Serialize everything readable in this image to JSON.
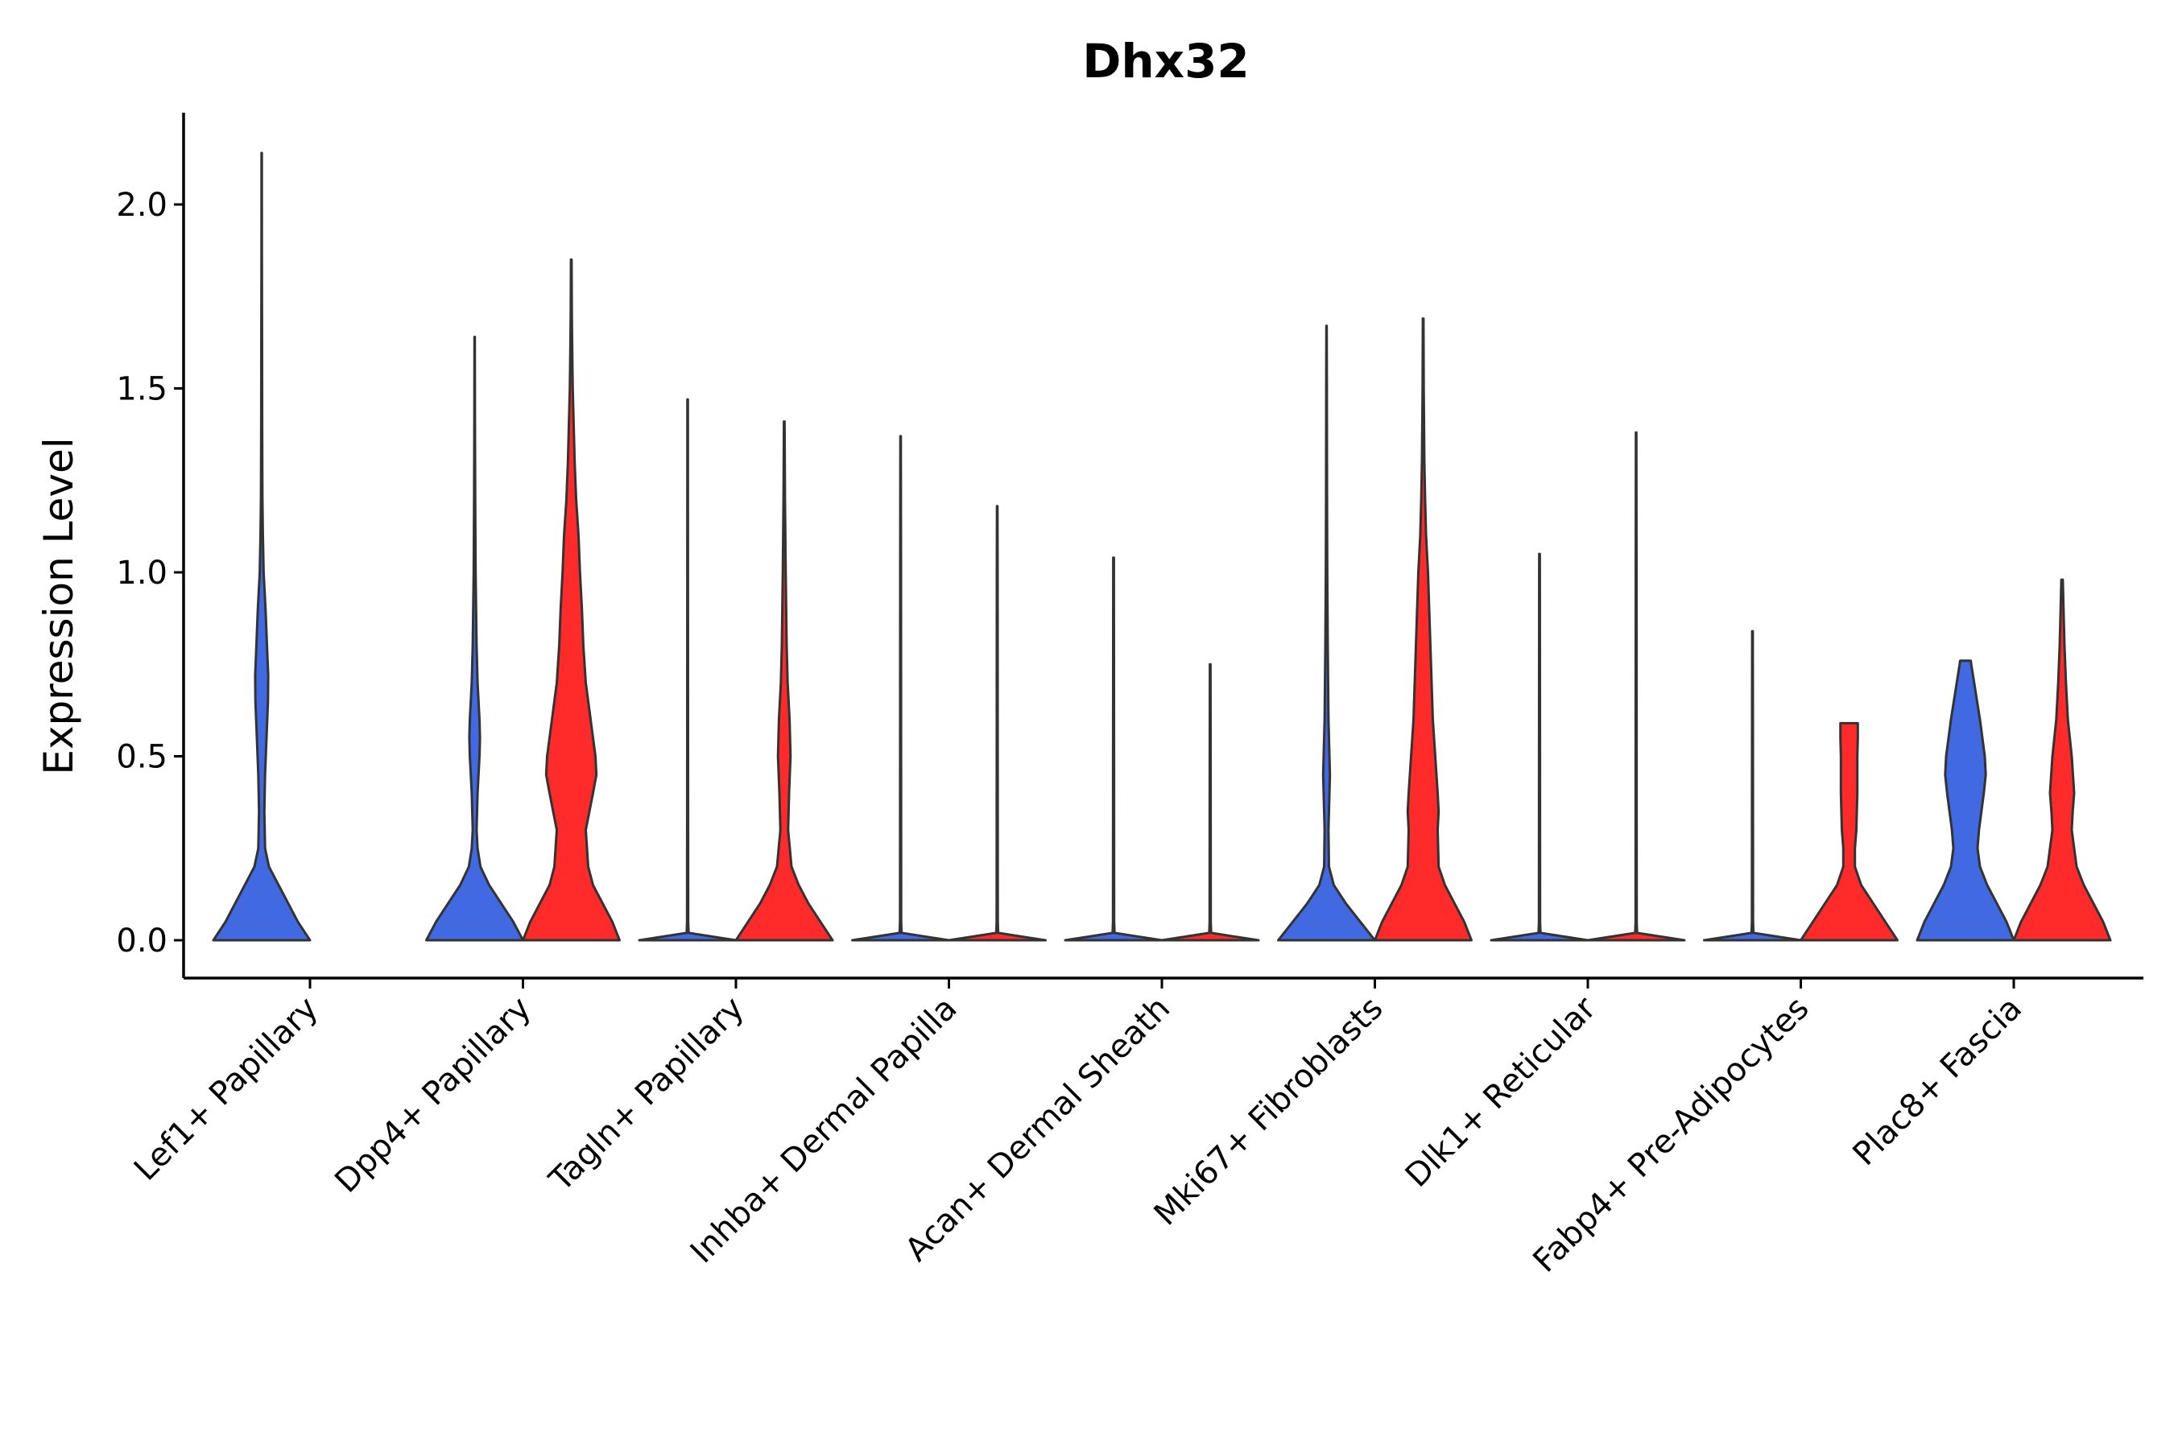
{
  "chart_data": {
    "type": "violin",
    "title": "Dhx32",
    "xlabel": "",
    "ylabel": "Expression Level",
    "ylim": [
      -0.1,
      2.25
    ],
    "yticks": [
      0.0,
      0.5,
      1.0,
      1.5,
      2.0
    ],
    "ytick_labels": [
      "0.0",
      "0.5",
      "1.0",
      "1.5",
      "2.0"
    ],
    "categories": [
      "Lef1+ Papillary",
      "Dpp4+ Papillary",
      "Tagln+ Papillary",
      "Inhba+ Dermal Papilla",
      "Acan+ Dermal Sheath",
      "Mki67+ Fibroblasts",
      "Dlk1+ Reticular",
      "Fabp4+ Pre-Adipocytes",
      "Plac8+ Fascia"
    ],
    "colors": {
      "group1": "#4169e1",
      "group2": "#ff2a2a",
      "outline": "#333333"
    },
    "violins": [
      {
        "category": 0,
        "group": 1,
        "max": 2.14,
        "profile": [
          [
            0,
            1.0
          ],
          [
            0.05,
            0.75
          ],
          [
            0.1,
            0.55
          ],
          [
            0.15,
            0.35
          ],
          [
            0.2,
            0.15
          ],
          [
            0.25,
            0.07
          ],
          [
            0.35,
            0.055
          ],
          [
            0.45,
            0.07
          ],
          [
            0.55,
            0.1
          ],
          [
            0.65,
            0.13
          ],
          [
            0.72,
            0.135
          ],
          [
            0.8,
            0.11
          ],
          [
            0.9,
            0.08
          ],
          [
            1.0,
            0.04
          ],
          [
            1.1,
            0.025
          ],
          [
            1.2,
            0.015
          ],
          [
            1.4,
            0.01
          ],
          [
            1.6,
            0.008
          ],
          [
            1.8,
            0.005
          ],
          [
            2.0,
            0.004
          ],
          [
            2.14,
            0.003
          ]
        ]
      },
      {
        "category": 1,
        "group": 1,
        "max": 1.64,
        "profile": [
          [
            0,
            1.0
          ],
          [
            0.05,
            0.8
          ],
          [
            0.1,
            0.55
          ],
          [
            0.15,
            0.3
          ],
          [
            0.2,
            0.12
          ],
          [
            0.25,
            0.06
          ],
          [
            0.3,
            0.04
          ],
          [
            0.4,
            0.06
          ],
          [
            0.5,
            0.1
          ],
          [
            0.55,
            0.11
          ],
          [
            0.6,
            0.1
          ],
          [
            0.7,
            0.06
          ],
          [
            0.8,
            0.04
          ],
          [
            1.0,
            0.02
          ],
          [
            1.2,
            0.012
          ],
          [
            1.4,
            0.007
          ],
          [
            1.64,
            0.004
          ]
        ]
      },
      {
        "category": 1,
        "group": 2,
        "max": 1.85,
        "profile": [
          [
            0,
            1.0
          ],
          [
            0.05,
            0.85
          ],
          [
            0.1,
            0.65
          ],
          [
            0.15,
            0.45
          ],
          [
            0.2,
            0.35
          ],
          [
            0.3,
            0.3
          ],
          [
            0.4,
            0.45
          ],
          [
            0.45,
            0.52
          ],
          [
            0.5,
            0.5
          ],
          [
            0.6,
            0.4
          ],
          [
            0.7,
            0.3
          ],
          [
            0.8,
            0.25
          ],
          [
            0.9,
            0.22
          ],
          [
            1.0,
            0.18
          ],
          [
            1.1,
            0.15
          ],
          [
            1.2,
            0.1
          ],
          [
            1.3,
            0.07
          ],
          [
            1.4,
            0.05
          ],
          [
            1.5,
            0.03
          ],
          [
            1.6,
            0.02
          ],
          [
            1.7,
            0.012
          ],
          [
            1.85,
            0.006
          ]
        ]
      },
      {
        "category": 2,
        "group": 1,
        "max": 1.47,
        "profile": [
          [
            0,
            1.0
          ],
          [
            0.02,
            0.02
          ],
          [
            0.05,
            0.012
          ],
          [
            0.3,
            0.01
          ],
          [
            0.6,
            0.008
          ],
          [
            1.0,
            0.007
          ],
          [
            1.47,
            0.005
          ]
        ]
      },
      {
        "category": 2,
        "group": 2,
        "max": 1.41,
        "profile": [
          [
            0,
            1.0
          ],
          [
            0.05,
            0.75
          ],
          [
            0.1,
            0.5
          ],
          [
            0.15,
            0.3
          ],
          [
            0.2,
            0.15
          ],
          [
            0.3,
            0.08
          ],
          [
            0.4,
            0.1
          ],
          [
            0.5,
            0.13
          ],
          [
            0.6,
            0.11
          ],
          [
            0.7,
            0.07
          ],
          [
            0.8,
            0.05
          ],
          [
            0.9,
            0.04
          ],
          [
            1.0,
            0.03
          ],
          [
            1.2,
            0.015
          ],
          [
            1.41,
            0.007
          ]
        ]
      },
      {
        "category": 3,
        "group": 1,
        "max": 1.37,
        "profile": [
          [
            0,
            1.0
          ],
          [
            0.02,
            0.02
          ],
          [
            0.05,
            0.012
          ],
          [
            0.5,
            0.01
          ],
          [
            1.0,
            0.008
          ],
          [
            1.37,
            0.005
          ]
        ]
      },
      {
        "category": 3,
        "group": 2,
        "max": 1.18,
        "profile": [
          [
            0,
            1.0
          ],
          [
            0.02,
            0.02
          ],
          [
            0.05,
            0.012
          ],
          [
            0.5,
            0.01
          ],
          [
            1.0,
            0.008
          ],
          [
            1.18,
            0.005
          ]
        ]
      },
      {
        "category": 4,
        "group": 1,
        "max": 1.04,
        "profile": [
          [
            0,
            1.0
          ],
          [
            0.02,
            0.02
          ],
          [
            0.05,
            0.012
          ],
          [
            0.5,
            0.01
          ],
          [
            1.04,
            0.006
          ]
        ]
      },
      {
        "category": 4,
        "group": 2,
        "max": 0.75,
        "profile": [
          [
            0,
            1.0
          ],
          [
            0.02,
            0.02
          ],
          [
            0.05,
            0.012
          ],
          [
            0.4,
            0.01
          ],
          [
            0.75,
            0.006
          ]
        ]
      },
      {
        "category": 5,
        "group": 1,
        "max": 1.67,
        "profile": [
          [
            0,
            1.0
          ],
          [
            0.05,
            0.7
          ],
          [
            0.1,
            0.4
          ],
          [
            0.15,
            0.15
          ],
          [
            0.2,
            0.05
          ],
          [
            0.3,
            0.04
          ],
          [
            0.4,
            0.06
          ],
          [
            0.45,
            0.07
          ],
          [
            0.5,
            0.06
          ],
          [
            0.6,
            0.04
          ],
          [
            0.8,
            0.025
          ],
          [
            1.0,
            0.015
          ],
          [
            1.2,
            0.01
          ],
          [
            1.5,
            0.006
          ],
          [
            1.67,
            0.004
          ]
        ]
      },
      {
        "category": 5,
        "group": 2,
        "max": 1.69,
        "profile": [
          [
            0,
            1.0
          ],
          [
            0.05,
            0.85
          ],
          [
            0.1,
            0.65
          ],
          [
            0.15,
            0.45
          ],
          [
            0.2,
            0.32
          ],
          [
            0.3,
            0.3
          ],
          [
            0.35,
            0.32
          ],
          [
            0.4,
            0.3
          ],
          [
            0.5,
            0.25
          ],
          [
            0.6,
            0.2
          ],
          [
            0.8,
            0.15
          ],
          [
            1.0,
            0.1
          ],
          [
            1.1,
            0.06
          ],
          [
            1.2,
            0.04
          ],
          [
            1.3,
            0.025
          ],
          [
            1.5,
            0.012
          ],
          [
            1.69,
            0.006
          ]
        ]
      },
      {
        "category": 6,
        "group": 1,
        "max": 1.05,
        "profile": [
          [
            0,
            1.0
          ],
          [
            0.02,
            0.02
          ],
          [
            0.05,
            0.012
          ],
          [
            0.5,
            0.01
          ],
          [
            1.05,
            0.006
          ]
        ]
      },
      {
        "category": 6,
        "group": 2,
        "max": 1.38,
        "profile": [
          [
            0,
            1.0
          ],
          [
            0.02,
            0.02
          ],
          [
            0.05,
            0.012
          ],
          [
            0.5,
            0.01
          ],
          [
            1.0,
            0.008
          ],
          [
            1.38,
            0.005
          ]
        ]
      },
      {
        "category": 7,
        "group": 1,
        "max": 0.84,
        "profile": [
          [
            0,
            1.0
          ],
          [
            0.02,
            0.02
          ],
          [
            0.05,
            0.012
          ],
          [
            0.4,
            0.01
          ],
          [
            0.84,
            0.006
          ]
        ]
      },
      {
        "category": 7,
        "group": 2,
        "max": 0.59,
        "profile": [
          [
            0,
            1.0
          ],
          [
            0.05,
            0.75
          ],
          [
            0.1,
            0.5
          ],
          [
            0.15,
            0.25
          ],
          [
            0.2,
            0.12
          ],
          [
            0.25,
            0.12
          ],
          [
            0.3,
            0.15
          ],
          [
            0.4,
            0.17
          ],
          [
            0.5,
            0.17
          ],
          [
            0.55,
            0.18
          ],
          [
            0.59,
            0.18
          ]
        ]
      },
      {
        "category": 8,
        "group": 1,
        "max": 0.76,
        "profile": [
          [
            0,
            1.0
          ],
          [
            0.05,
            0.85
          ],
          [
            0.1,
            0.65
          ],
          [
            0.15,
            0.45
          ],
          [
            0.2,
            0.3
          ],
          [
            0.25,
            0.25
          ],
          [
            0.3,
            0.28
          ],
          [
            0.4,
            0.38
          ],
          [
            0.45,
            0.42
          ],
          [
            0.5,
            0.4
          ],
          [
            0.6,
            0.3
          ],
          [
            0.7,
            0.18
          ],
          [
            0.75,
            0.12
          ],
          [
            0.76,
            0.11
          ]
        ]
      },
      {
        "category": 8,
        "group": 2,
        "max": 0.98,
        "profile": [
          [
            0,
            1.0
          ],
          [
            0.05,
            0.85
          ],
          [
            0.1,
            0.65
          ],
          [
            0.15,
            0.45
          ],
          [
            0.2,
            0.3
          ],
          [
            0.3,
            0.2
          ],
          [
            0.35,
            0.22
          ],
          [
            0.4,
            0.25
          ],
          [
            0.5,
            0.2
          ],
          [
            0.6,
            0.12
          ],
          [
            0.7,
            0.08
          ],
          [
            0.8,
            0.05
          ],
          [
            0.9,
            0.03
          ],
          [
            0.98,
            0.015
          ]
        ]
      }
    ]
  }
}
